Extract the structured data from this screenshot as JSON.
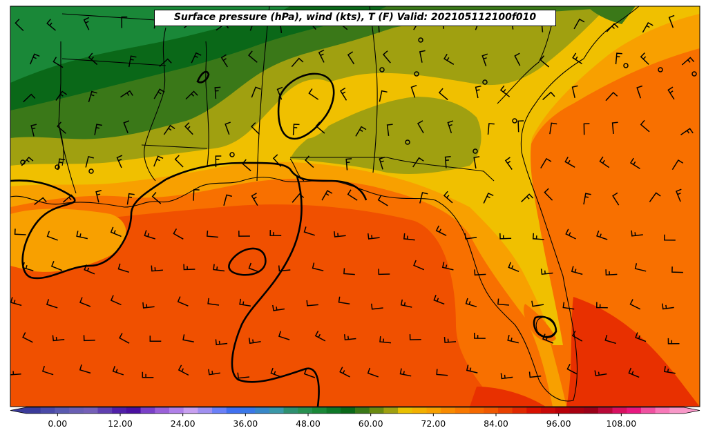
{
  "map": {
    "title": "Surface pressure (hPa), wind (kts), T (F) Valid: 202105112100f010"
  },
  "colorbar": {
    "min": -6,
    "max": 120,
    "tick_labels": [
      "0.00",
      "12.00",
      "24.00",
      "36.00",
      "48.00",
      "60.00",
      "72.00",
      "84.00",
      "96.00",
      "108.00"
    ],
    "tick_values": [
      0,
      12,
      24,
      36,
      48,
      60,
      72,
      84,
      96,
      108
    ],
    "colors": [
      "#3b3b9a",
      "#4a4aa8",
      "#5a5ab0",
      "#6a5fb4",
      "#7560b8",
      "#6040b0",
      "#5020a8",
      "#4a10a0",
      "#7a40c8",
      "#9a60d8",
      "#b080e8",
      "#c8a0f0",
      "#a090f0",
      "#6a80f8",
      "#4070f0",
      "#3a78e8",
      "#3888c8",
      "#3a98a8",
      "#2e9070",
      "#289050",
      "#1a8838",
      "#0e7828",
      "#0a6818",
      "#3a7818",
      "#6a8a10",
      "#a0a010",
      "#e8c000",
      "#f2b000",
      "#f7a000",
      "#f88a00",
      "#f87800",
      "#f56800",
      "#f05800",
      "#e84000",
      "#e02800",
      "#d81000",
      "#c80808",
      "#b80008",
      "#a80010",
      "#9a0018",
      "#b80838",
      "#d81060",
      "#e81880",
      "#f050a0",
      "#f878b8",
      "#f898c8"
    ]
  },
  "colors": {
    "dark_green": "#0a6818",
    "green": "#3a7818",
    "olive": "#a0a010",
    "yellow": "#f0c000",
    "light_orange": "#f8a000",
    "orange": "#f87000",
    "red_orange": "#f05000",
    "red": "#e83000"
  }
}
